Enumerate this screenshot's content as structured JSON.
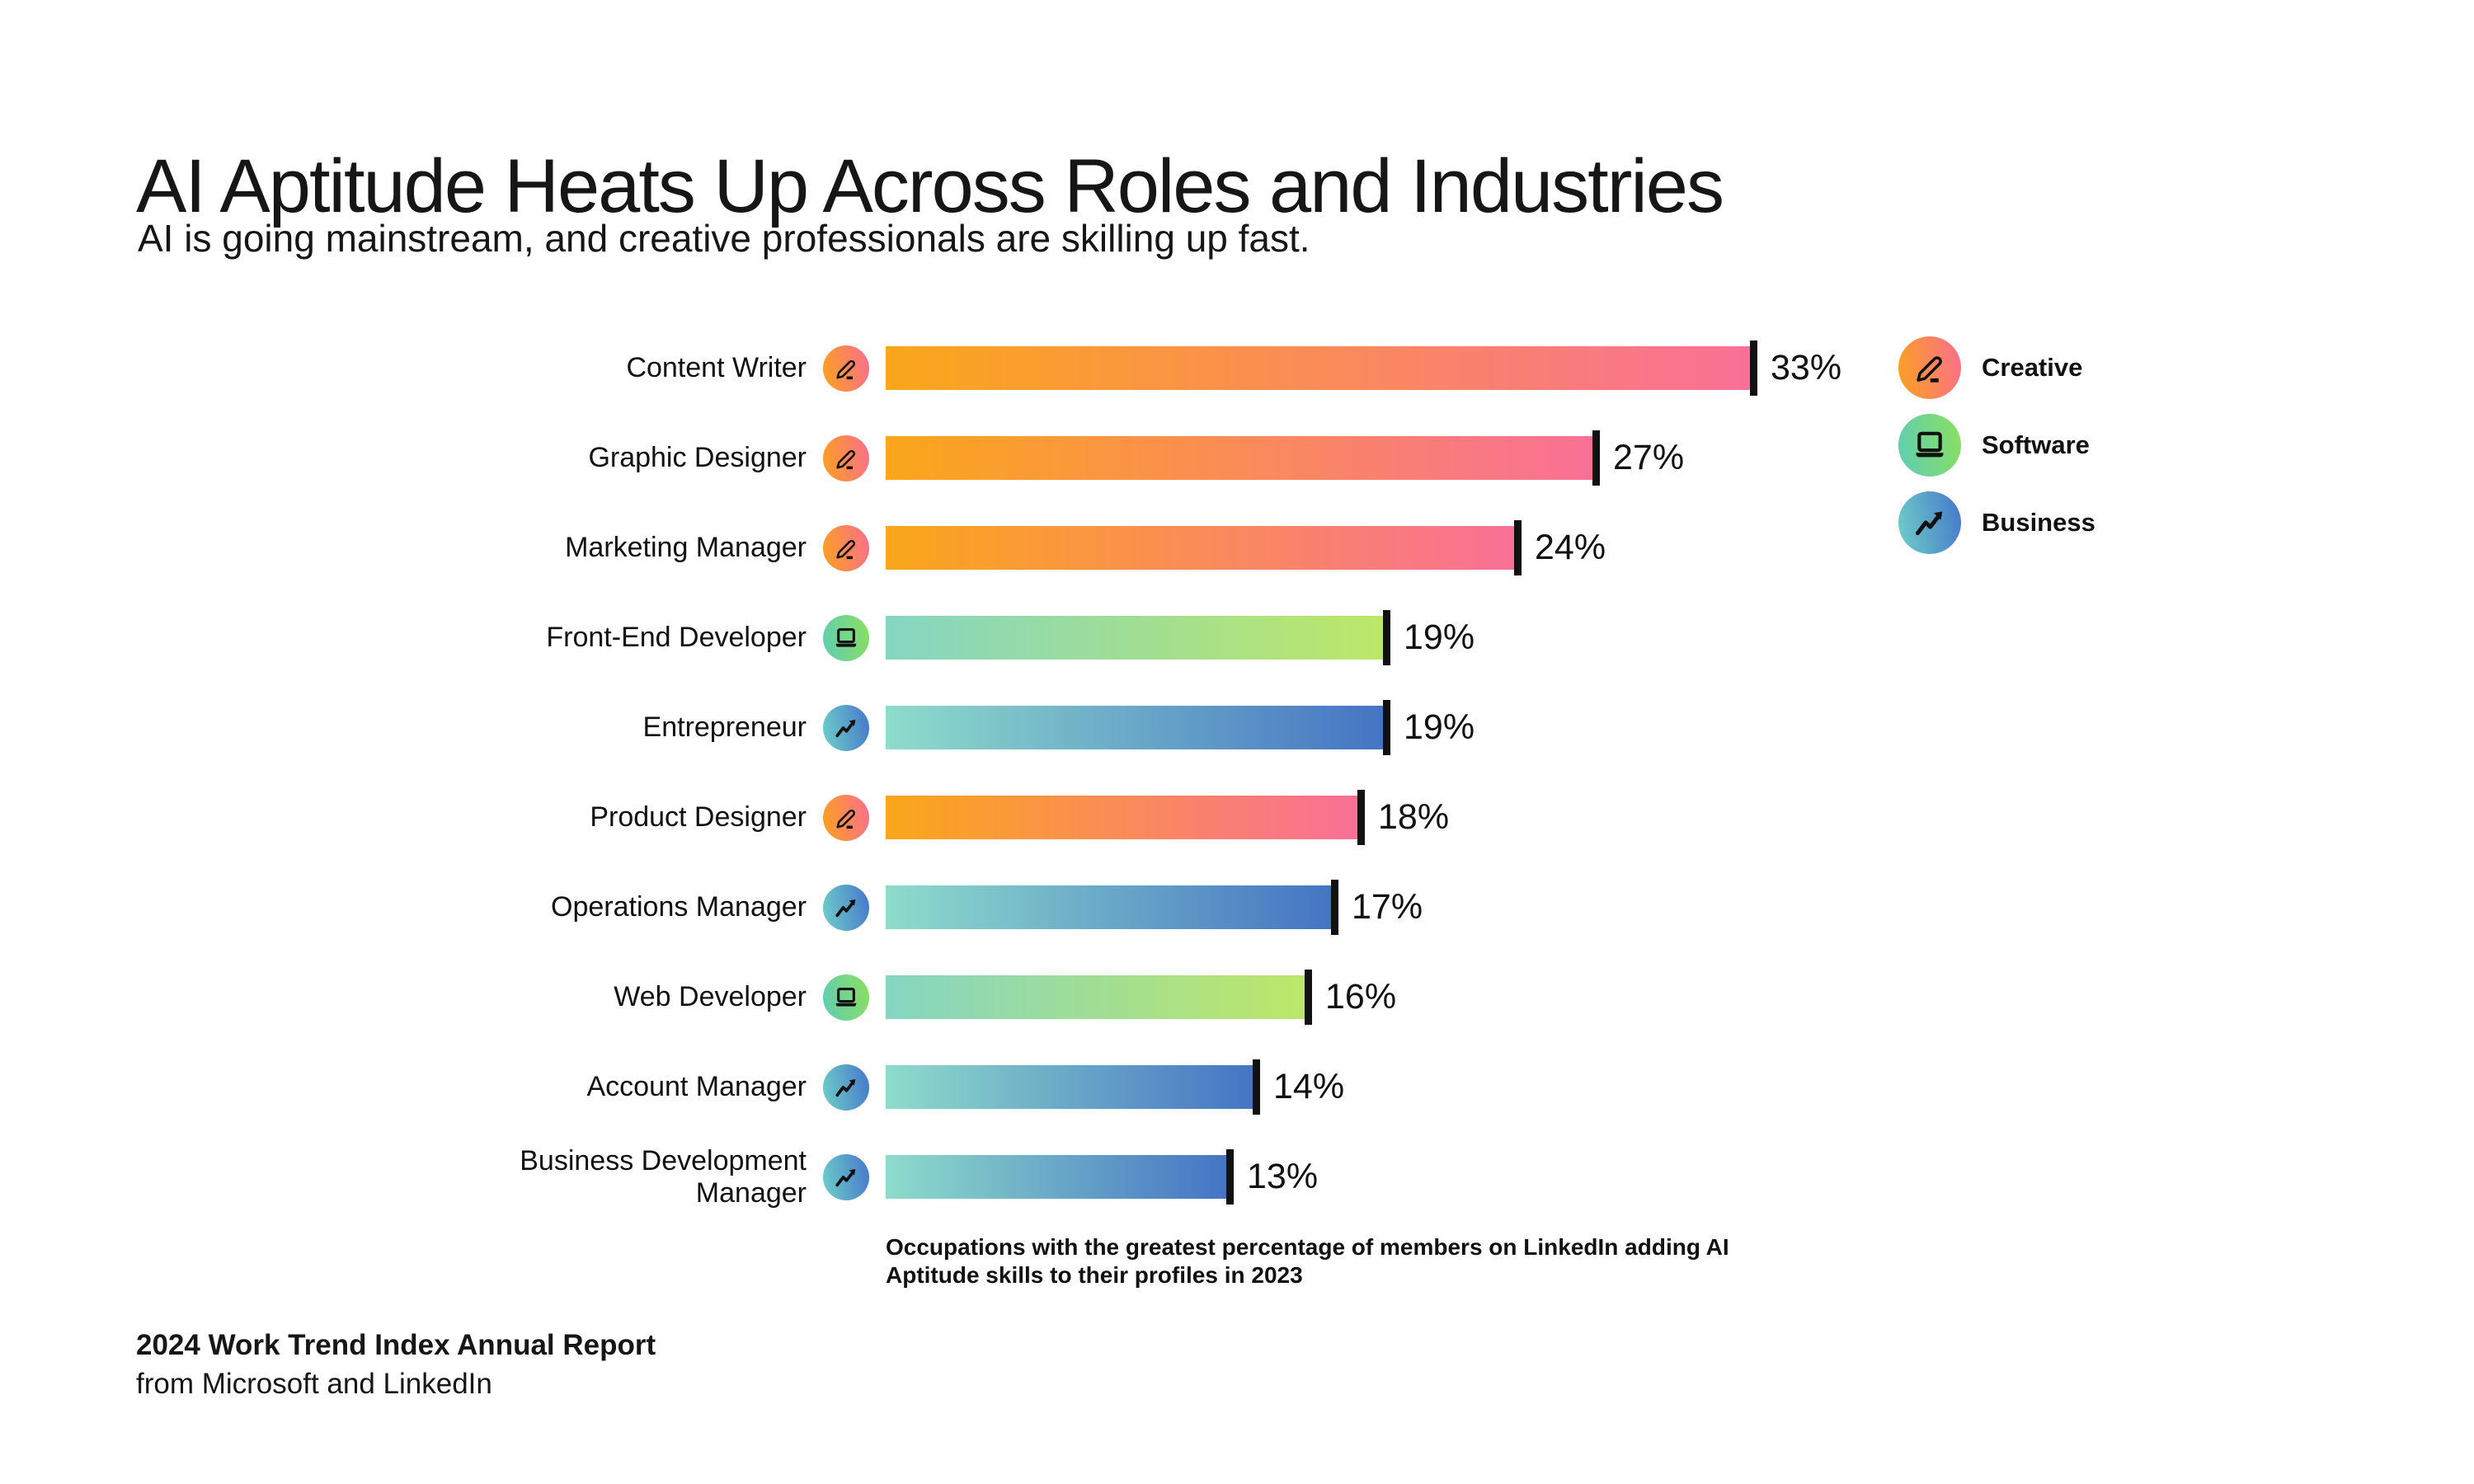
{
  "header": {
    "title": "AI Aptitude Heats Up Across Roles and Industries",
    "subtitle": "AI is going mainstream, and creative professionals are skilling up fast."
  },
  "chart_data": {
    "type": "bar",
    "orientation": "horizontal",
    "unit": "%",
    "xlim": [
      0,
      33
    ],
    "grid": false,
    "legend_position": "right",
    "title": "AI Aptitude Heats Up Across Roles and Industries",
    "subtitle": "AI is going mainstream, and creative professionals are skilling up fast.",
    "caption": "Occupations with the greatest percentage of members on LinkedIn adding AI Aptitude skills to their profiles in 2023",
    "categories": [
      "Content Writer",
      "Graphic Designer",
      "Marketing Manager",
      "Front-End Developer",
      "Entrepreneur",
      "Product Designer",
      "Operations Manager",
      "Web Developer",
      "Account Manager",
      "Business Development Manager"
    ],
    "values": [
      33,
      27,
      24,
      19,
      19,
      18,
      17,
      16,
      14,
      13
    ],
    "bars": [
      {
        "label": "Content Writer",
        "value": 33,
        "display_value": "33%",
        "category": "creative"
      },
      {
        "label": "Graphic Designer",
        "value": 27,
        "display_value": "27%",
        "category": "creative"
      },
      {
        "label": "Marketing Manager",
        "value": 24,
        "display_value": "24%",
        "category": "creative"
      },
      {
        "label": "Front-End Developer",
        "value": 19,
        "display_value": "19%",
        "category": "software"
      },
      {
        "label": "Entrepreneur",
        "value": 19,
        "display_value": "19%",
        "category": "business"
      },
      {
        "label": "Product Designer",
        "value": 18,
        "display_value": "18%",
        "category": "creative"
      },
      {
        "label": "Operations Manager",
        "value": 17,
        "display_value": "17%",
        "category": "business"
      },
      {
        "label": "Web Developer",
        "value": 16,
        "display_value": "16%",
        "category": "software"
      },
      {
        "label": "Account Manager",
        "value": 14,
        "display_value": "14%",
        "category": "business"
      },
      {
        "label": "Business Development Manager",
        "value": 13,
        "display_value": "13%",
        "category": "business"
      }
    ]
  },
  "categories_meta": {
    "creative": {
      "label": "Creative",
      "icon": "pen-icon",
      "bar_gradient": [
        "#FAA71A",
        "#F97096"
      ],
      "icon_gradient": [
        "#FBA21E",
        "#FB6E8E"
      ]
    },
    "software": {
      "label": "Software",
      "icon": "laptop-icon",
      "bar_gradient": [
        "#85D5C2",
        "#BCE768"
      ],
      "icon_gradient": [
        "#5FCDB4",
        "#8BDF5F"
      ]
    },
    "business": {
      "label": "Business",
      "icon": "trend-up-icon",
      "bar_gradient": [
        "#8EDCCB",
        "#4574C4"
      ],
      "icon_gradient": [
        "#6FCFC9",
        "#4577CA"
      ]
    }
  },
  "legend": {
    "items": [
      {
        "label": "Creative",
        "icon": "pen-icon",
        "category": "creative"
      },
      {
        "label": "Software",
        "icon": "laptop-icon",
        "category": "software"
      },
      {
        "label": "Business",
        "icon": "trend-up-icon",
        "category": "business"
      }
    ]
  },
  "colors": {
    "bar_end_cap": "#111111",
    "text": "#161616",
    "background": "#FFFFFF"
  },
  "footer": {
    "line1": "2024 Work Trend Index Annual Report",
    "line2": "from Microsoft and LinkedIn"
  }
}
